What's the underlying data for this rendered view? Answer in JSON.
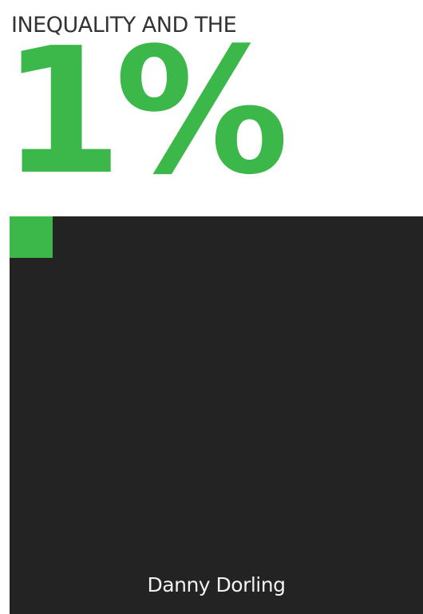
{
  "cover": {
    "supertitle": "INEQUALITY AND THE",
    "title": "1%",
    "author": "Danny Dorling"
  },
  "colors": {
    "accent": "#3cb84a",
    "dark_panel": "#232323",
    "supertitle_text": "#333333",
    "author_text": "#f2f2f2",
    "background": "#ffffff"
  }
}
